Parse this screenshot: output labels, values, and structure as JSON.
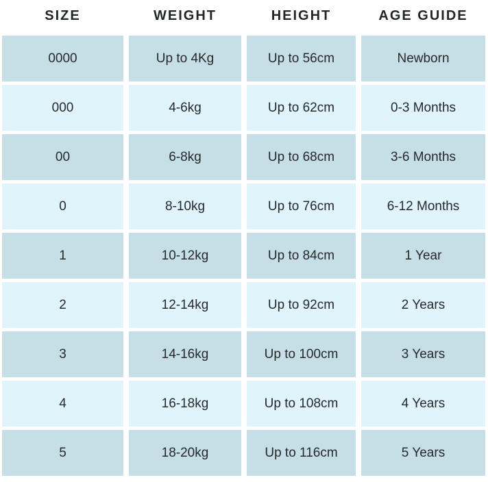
{
  "table": {
    "columns": [
      "SIZE",
      "WEIGHT",
      "HEIGHT",
      "AGE GUIDE"
    ],
    "rows": [
      {
        "size": "0000",
        "weight": "Up to 4Kg",
        "height": "Up to 56cm",
        "age": "Newborn"
      },
      {
        "size": "000",
        "weight": "4-6kg",
        "height": "Up to 62cm",
        "age": "0-3 Months"
      },
      {
        "size": "00",
        "weight": "6-8kg",
        "height": "Up to 68cm",
        "age": "3-6 Months"
      },
      {
        "size": "0",
        "weight": "8-10kg",
        "height": "Up to 76cm",
        "age": "6-12 Months"
      },
      {
        "size": "1",
        "weight": "10-12kg",
        "height": "Up to 84cm",
        "age": "1 Year"
      },
      {
        "size": "2",
        "weight": "12-14kg",
        "height": "Up to 92cm",
        "age": "2 Years"
      },
      {
        "size": "3",
        "weight": "14-16kg",
        "height": "Up to 100cm",
        "age": "3 Years"
      },
      {
        "size": "4",
        "weight": "16-18kg",
        "height": "Up to 108cm",
        "age": "4 Years"
      },
      {
        "size": "5",
        "weight": "18-20kg",
        "height": "Up to 116cm",
        "age": "5 Years"
      }
    ],
    "colors": {
      "row_dark": "#c6dee6",
      "row_light": "#e0f4fb",
      "header_text": "#232629",
      "cell_text": "#26292b",
      "gap": "#ffffff"
    }
  }
}
